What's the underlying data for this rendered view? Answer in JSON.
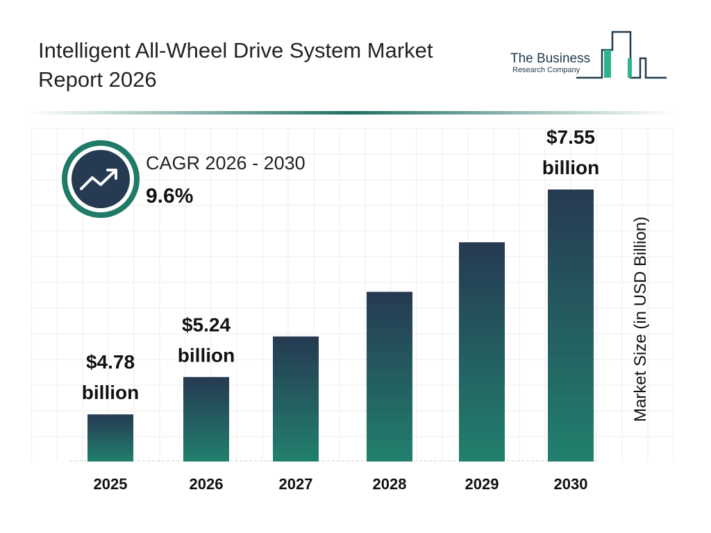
{
  "header": {
    "title": "Intelligent All-Wheel Drive System Market Report 2026"
  },
  "logo": {
    "line1": "The Business",
    "line2": "Research Company"
  },
  "cagr": {
    "label": "CAGR 2026 - 2030",
    "value": "9.6%",
    "icon": "trend-up-arrow-icon"
  },
  "colors": {
    "bar_top": "#263a52",
    "bar_bottom": "#21806d",
    "accent": "#1f7a68"
  },
  "chart_data": {
    "type": "bar",
    "categories": [
      "2025",
      "2026",
      "2027",
      "2028",
      "2029",
      "2030"
    ],
    "values": [
      4.78,
      5.24,
      5.74,
      6.29,
      6.9,
      7.55
    ],
    "data_labels": [
      {
        "index": 0,
        "line1": "$4.78",
        "line2": "billion"
      },
      {
        "index": 1,
        "line1": "$5.24",
        "line2": "billion"
      },
      {
        "index": 5,
        "line1": "$7.55",
        "line2": "billion"
      }
    ],
    "ylabel": "Market Size (in USD Billion)",
    "grid": true,
    "legend": "none"
  }
}
